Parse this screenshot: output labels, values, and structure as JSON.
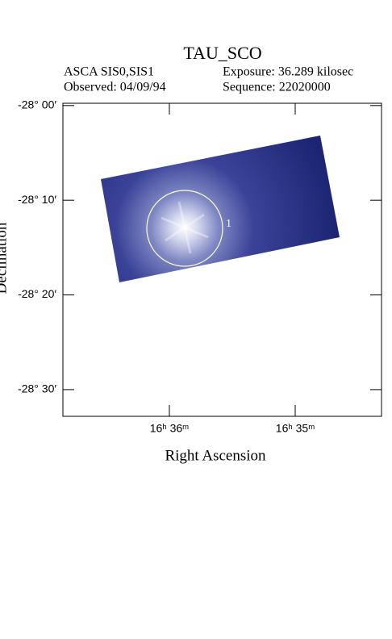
{
  "chart_data": {
    "type": "image",
    "title": "TAU_SCO",
    "info": {
      "instrument": "ASCA SIS0,SIS1",
      "exposure": "Exposure: 36.289 kilosec",
      "observed": "Observed: 04/09/94",
      "sequence": "Sequence: 22020000"
    },
    "xlabel": "Right Ascension",
    "ylabel": "Declination",
    "xlim": [
      16.6141,
      16.5719
    ],
    "xticks": [
      {
        "value": 16.6,
        "label": "16ʰ 36ᵐ"
      },
      {
        "value": 16.58333,
        "label": "16ʰ 35ᵐ"
      }
    ],
    "ylim": [
      -28.547,
      -27.996
    ],
    "yticks": [
      {
        "value": -28.0,
        "label": "-28° 00′"
      },
      {
        "value": -28.16667,
        "label": "-28° 10′"
      },
      {
        "value": -28.33333,
        "label": "-28° 20′"
      },
      {
        "value": -28.5,
        "label": "-28° 30′"
      }
    ],
    "annotations": [
      "1"
    ]
  }
}
